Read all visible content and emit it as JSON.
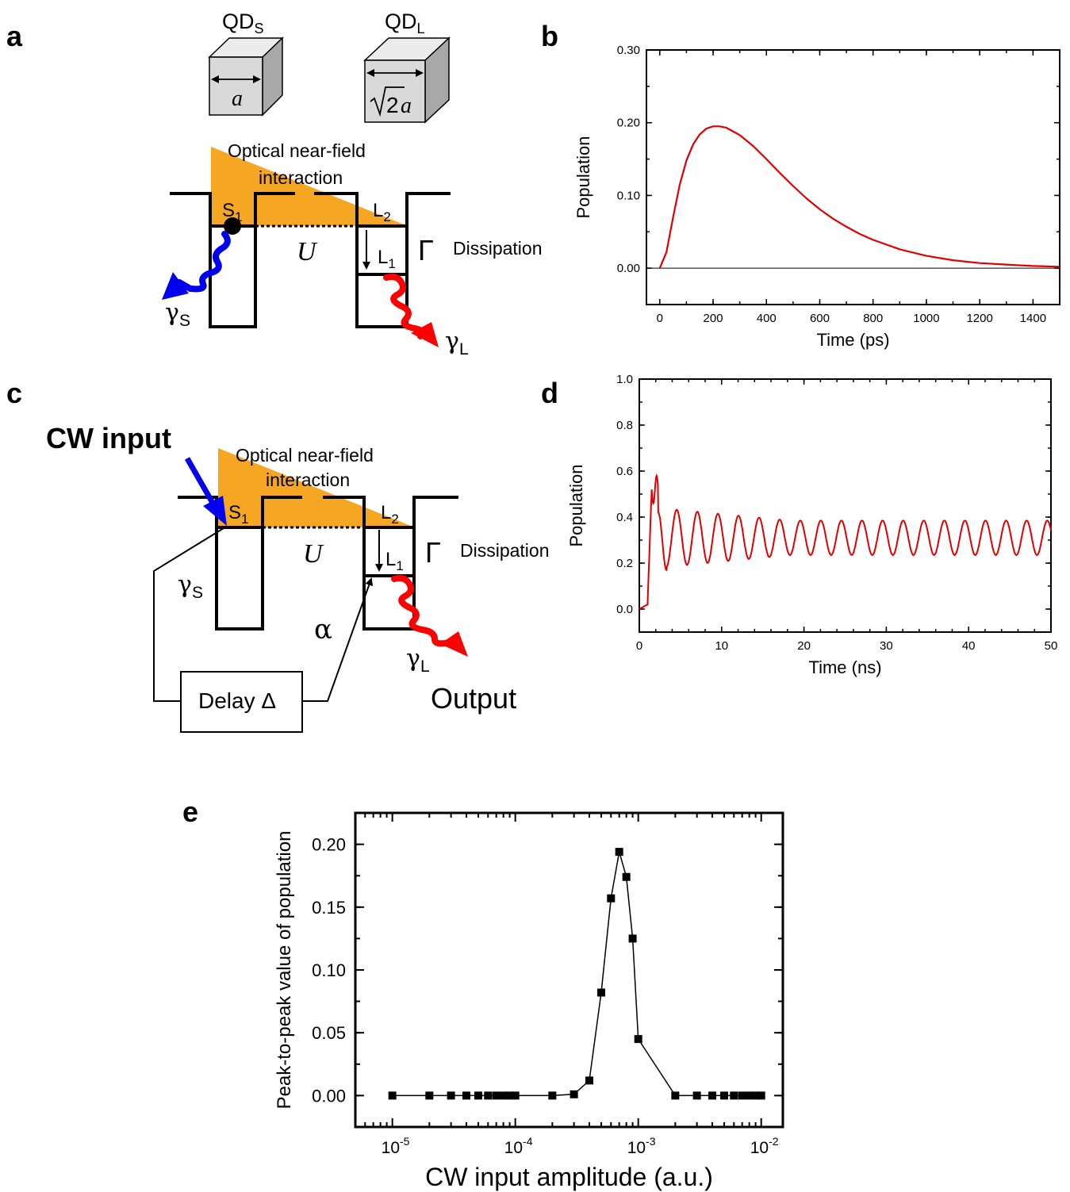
{
  "panels": {
    "a": {
      "label": "a",
      "qd_small_label": "QD",
      "qd_small_sub": "S",
      "qd_large_label": "QD",
      "qd_large_sub": "L",
      "qd_small_dim": "a",
      "qd_large_dim_num": "2",
      "qd_large_dim_var": "a",
      "interaction_line1": "Optical near-field",
      "interaction_line2": "interaction",
      "s1": "S",
      "s1_sub": "1",
      "l2": "L",
      "l2_sub": "2",
      "l1": "L",
      "l1_sub": "1",
      "u": "U",
      "gamma_cap": "Γ",
      "dissipation": "Dissipation",
      "gamma_s": "γ",
      "gamma_s_sub": "S",
      "gamma_l": "γ",
      "gamma_l_sub": "L"
    },
    "b": {
      "label": "b"
    },
    "c": {
      "label": "c",
      "cw_input": "CW input",
      "interaction_line1": "Optical near-field",
      "interaction_line2": "interaction",
      "s1": "S",
      "s1_sub": "1",
      "l2": "L",
      "l2_sub": "2",
      "l1": "L",
      "l1_sub": "1",
      "u": "U",
      "gamma_cap": "Γ",
      "dissipation": "Dissipation",
      "gamma_s": "γ",
      "gamma_s_sub": "S",
      "gamma_l": "γ",
      "gamma_l_sub": "L",
      "alpha": "α",
      "delay": "Delay Δ",
      "output": "Output"
    },
    "d": {
      "label": "d"
    },
    "e": {
      "label": "e"
    }
  },
  "colors": {
    "orange": "#F5A623",
    "blue": "#0000EE",
    "red": "#FF0000",
    "curve": "#E00000"
  },
  "chart_data": [
    {
      "id": "b",
      "type": "line",
      "xlabel": "Time (ps)",
      "ylabel": "Population",
      "xlim": [
        -50,
        1500
      ],
      "ylim": [
        -0.05,
        0.3
      ],
      "xticks": [
        0,
        200,
        400,
        600,
        800,
        1000,
        1200,
        1400
      ],
      "yticks": [
        0.0,
        0.1,
        0.2,
        0.3
      ],
      "xtick_labels": [
        "0",
        "200",
        "400",
        "600",
        "800",
        "1000",
        "1200",
        "1400"
      ],
      "ytick_labels": [
        "0.00",
        "0.10",
        "0.20",
        "0.30"
      ],
      "zero_line": true,
      "x": [
        0,
        25,
        50,
        75,
        100,
        125,
        150,
        175,
        200,
        225,
        250,
        300,
        350,
        400,
        450,
        500,
        550,
        600,
        650,
        700,
        750,
        800,
        900,
        1000,
        1100,
        1200,
        1300,
        1400,
        1500
      ],
      "y": [
        0.0,
        0.022,
        0.07,
        0.115,
        0.148,
        0.17,
        0.184,
        0.192,
        0.195,
        0.195,
        0.193,
        0.183,
        0.168,
        0.15,
        0.131,
        0.113,
        0.096,
        0.081,
        0.068,
        0.057,
        0.047,
        0.039,
        0.026,
        0.017,
        0.011,
        0.007,
        0.005,
        0.003,
        0.002
      ]
    },
    {
      "id": "d",
      "type": "line",
      "xlabel": "Time (ns)",
      "ylabel": "Population",
      "xlim": [
        0,
        50
      ],
      "ylim": [
        -0.1,
        1.0
      ],
      "xticks": [
        0,
        10,
        20,
        30,
        40,
        50
      ],
      "yticks": [
        0.0,
        0.2,
        0.4,
        0.6,
        0.8,
        1.0
      ],
      "xtick_labels": [
        "0",
        "10",
        "20",
        "30",
        "40",
        "50"
      ],
      "ytick_labels": [
        "0.0",
        "0.2",
        "0.4",
        "0.6",
        "0.8",
        "1.0"
      ],
      "oscillation": {
        "start": 0.0,
        "rise_end": 1.5,
        "initial_peak": 0.52,
        "mean": 0.31,
        "amplitude_start": 0.13,
        "amplitude_end": 0.075,
        "period": 2.5,
        "first_trough_time": 3.3,
        "first_trough_value": 0.17
      }
    },
    {
      "id": "e",
      "type": "scatter",
      "xlabel": "CW input amplitude (a.u.)",
      "ylabel": "Peak-to-peak value of population",
      "xscale": "log",
      "xlim": [
        5e-06,
        0.015
      ],
      "ylim": [
        -0.025,
        0.225
      ],
      "xticks": [
        1e-05,
        0.0001,
        0.001,
        0.01
      ],
      "xtick_base": "10",
      "xtick_exps": [
        "-5",
        "-4",
        "-3",
        "-2"
      ],
      "yticks": [
        0.0,
        0.05,
        0.1,
        0.15,
        0.2
      ],
      "ytick_labels": [
        "0.00",
        "0.05",
        "0.10",
        "0.15",
        "0.20"
      ],
      "x": [
        1e-05,
        2e-05,
        3e-05,
        4e-05,
        5e-05,
        6e-05,
        7e-05,
        8e-05,
        9e-05,
        0.0001,
        0.0002,
        0.0003,
        0.0004,
        0.0005,
        0.0006,
        0.0007,
        0.0008,
        0.0009,
        0.001,
        0.002,
        0.003,
        0.004,
        0.005,
        0.006,
        0.007,
        0.008,
        0.009,
        0.01
      ],
      "y": [
        0.0,
        0.0,
        0.0,
        0.0,
        0.0,
        0.0,
        0.0,
        0.0,
        0.0,
        0.0,
        0.0,
        0.001,
        0.012,
        0.082,
        0.157,
        0.194,
        0.174,
        0.125,
        0.045,
        0.0,
        0.0,
        0.0,
        0.0,
        0.0,
        0.0,
        0.0,
        0.0,
        0.0
      ]
    }
  ]
}
